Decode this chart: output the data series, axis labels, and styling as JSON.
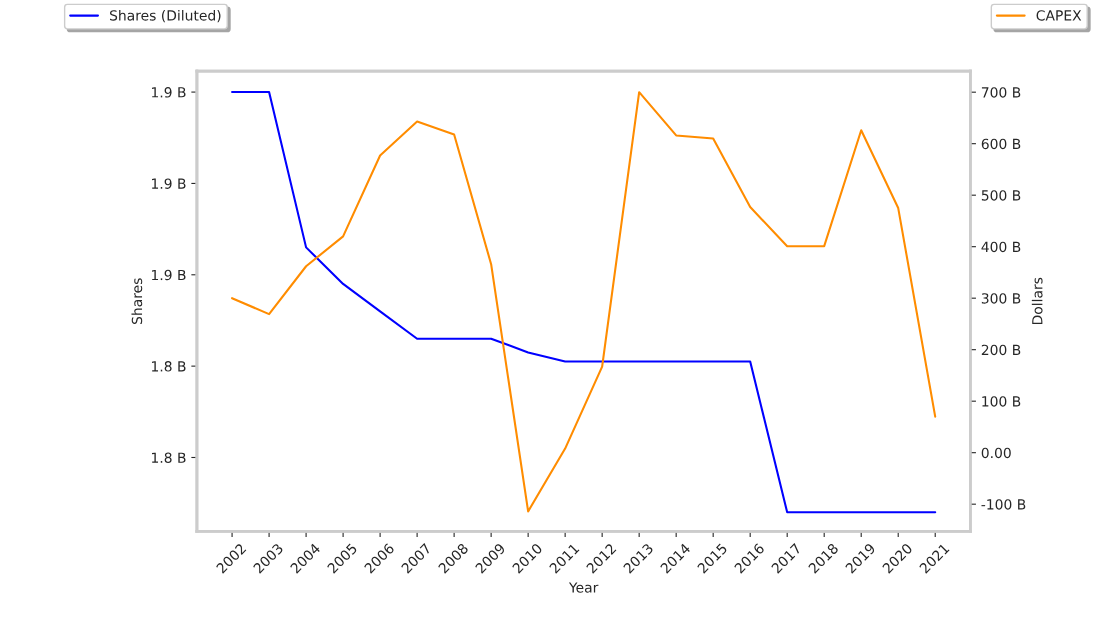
{
  "chart_data": {
    "type": "line",
    "xlabel": "Year",
    "ylabel": "Shares",
    "y2label": "Dollars",
    "categories": [
      "2002",
      "2003",
      "2004",
      "2005",
      "2006",
      "2007",
      "2008",
      "2009",
      "2010",
      "2011",
      "2012",
      "2013",
      "2014",
      "2015",
      "2016",
      "2017",
      "2018",
      "2019",
      "2020",
      "2021"
    ],
    "series": [
      {
        "name": "Shares (Diluted)",
        "color": "#0000ff",
        "values": [
          1.9,
          1.9,
          1.866,
          1.858,
          1.852,
          1.846,
          1.846,
          1.846,
          1.843,
          1.841,
          1.841,
          1.841,
          1.841,
          1.841,
          1.841,
          1.808,
          1.808,
          1.808,
          1.808,
          1.808
        ]
      },
      {
        "name": "CAPEX",
        "color": "#ff8c00",
        "axis": "y2",
        "values": [
          300,
          269,
          362,
          420,
          577,
          643,
          618,
          366,
          -114,
          8,
          167,
          700,
          616,
          610,
          477,
          401,
          401,
          626,
          475,
          70
        ]
      }
    ],
    "ylim": [
      1.8038,
      1.9046
    ],
    "yticks": [
      {
        "value": 1.82,
        "label": "1.8 B"
      },
      {
        "value": 1.84,
        "label": "1.8 B"
      },
      {
        "value": 1.86,
        "label": "1.9 B"
      },
      {
        "value": 1.88,
        "label": "1.9 B"
      },
      {
        "value": 1.9,
        "label": "1.9 B"
      }
    ],
    "y2lim": [
      -153,
      741
    ],
    "y2ticks": [
      {
        "value": -100,
        "label": "-100 B"
      },
      {
        "value": 0,
        "label": "0.00"
      },
      {
        "value": 100,
        "label": "100 B"
      },
      {
        "value": 200,
        "label": "200 B"
      },
      {
        "value": 300,
        "label": "300 B"
      },
      {
        "value": 400,
        "label": "400 B"
      },
      {
        "value": 500,
        "label": "500 B"
      },
      {
        "value": 600,
        "label": "600 B"
      },
      {
        "value": 700,
        "label": "700 B"
      }
    ],
    "legend": "top",
    "grid": false
  }
}
